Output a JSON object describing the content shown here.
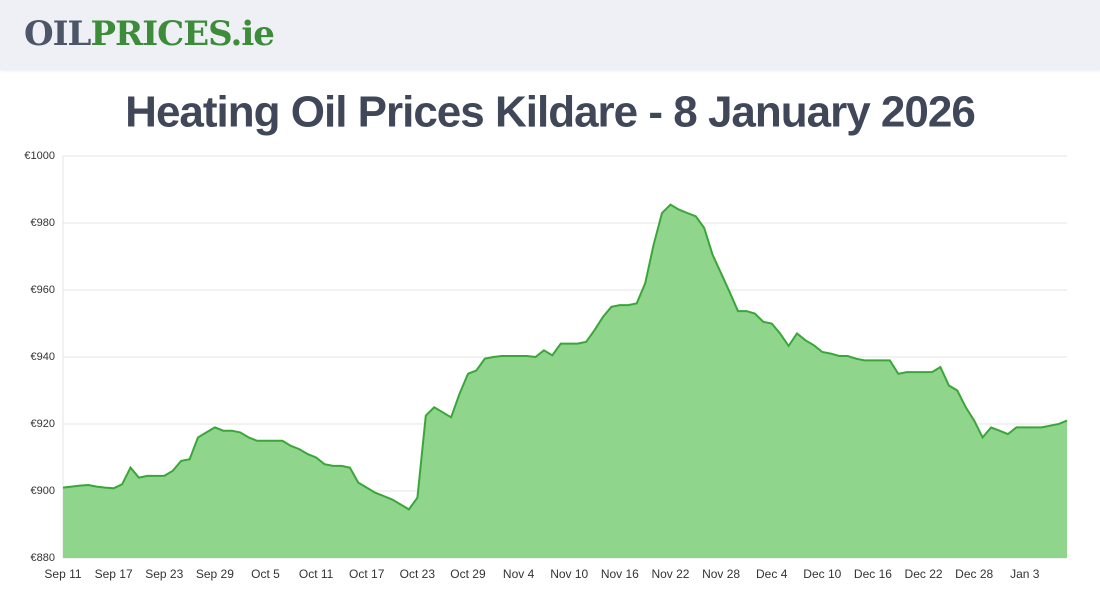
{
  "header": {
    "logo": {
      "part1": "OIL",
      "part2": "PRICES.ie"
    }
  },
  "chart_data": {
    "type": "area",
    "title": "Heating Oil Prices Kildare - 8 January 2026",
    "categories": [
      "Sep 11",
      null,
      null,
      null,
      null,
      null,
      "Sep 17",
      null,
      null,
      null,
      null,
      null,
      "Sep 23",
      null,
      null,
      null,
      null,
      null,
      "Sep 29",
      null,
      null,
      null,
      null,
      null,
      "Oct 5",
      null,
      null,
      null,
      null,
      null,
      "Oct 11",
      null,
      null,
      null,
      null,
      null,
      "Oct 17",
      null,
      null,
      null,
      null,
      null,
      "Oct 23",
      null,
      null,
      null,
      null,
      null,
      "Oct 29",
      null,
      null,
      null,
      null,
      null,
      "Nov 4",
      null,
      null,
      null,
      null,
      null,
      "Nov 10",
      null,
      null,
      null,
      null,
      null,
      "Nov 16",
      null,
      null,
      null,
      null,
      null,
      "Nov 22",
      null,
      null,
      null,
      null,
      null,
      "Nov 28",
      null,
      null,
      null,
      null,
      null,
      "Dec 4",
      null,
      null,
      null,
      null,
      null,
      "Dec 10",
      null,
      null,
      null,
      null,
      null,
      "Dec 16",
      null,
      null,
      null,
      null,
      null,
      "Dec 22",
      null,
      null,
      null,
      null,
      null,
      "Dec 28",
      null,
      null,
      null,
      null,
      null,
      "Jan 3",
      null,
      null,
      null,
      null,
      null
    ],
    "values": [
      901,
      901.3,
      901.6,
      901.8,
      901.3,
      901,
      900.8,
      902,
      907,
      904,
      904.5,
      904.5,
      904.5,
      906,
      909,
      909.5,
      916,
      917.5,
      919,
      918,
      918,
      917.5,
      916,
      915,
      915,
      915,
      915,
      913.5,
      912.5,
      911,
      910,
      908,
      907.5,
      907.5,
      907,
      902.5,
      901,
      899.5,
      898.5,
      897.5,
      896,
      894.5,
      898,
      922.5,
      925,
      923.5,
      922,
      929,
      935,
      936,
      939.5,
      940,
      940.3,
      940.3,
      940.3,
      940.3,
      940,
      942,
      940.5,
      944,
      944,
      944,
      944.5,
      948,
      952,
      955,
      955.5,
      955.5,
      956,
      962,
      973.5,
      983,
      985.5,
      984,
      983,
      982,
      978.5,
      970.5,
      965,
      959.5,
      953.7,
      953.7,
      953,
      950.5,
      950,
      947,
      943.3,
      947,
      945,
      943.5,
      941.5,
      941,
      940.3,
      940.3,
      939.5,
      939,
      939,
      939,
      939,
      935,
      935.5,
      935.5,
      935.5,
      935.5,
      937,
      931.5,
      930,
      925,
      921,
      916,
      919,
      918,
      917,
      919,
      919,
      919,
      919,
      919.5,
      920,
      921
    ],
    "color": "#3aa63a",
    "fill": "#90d58c",
    "ylim": [
      880,
      1000
    ],
    "yticks": [
      {
        "value": 880,
        "label": "€880"
      },
      {
        "value": 900,
        "label": "€900"
      },
      {
        "value": 920,
        "label": "€920"
      },
      {
        "value": 940,
        "label": "€940"
      },
      {
        "value": 960,
        "label": "€960"
      },
      {
        "value": 980,
        "label": "€980"
      },
      {
        "value": 1000,
        "label": "€1000"
      }
    ],
    "grid": true
  }
}
